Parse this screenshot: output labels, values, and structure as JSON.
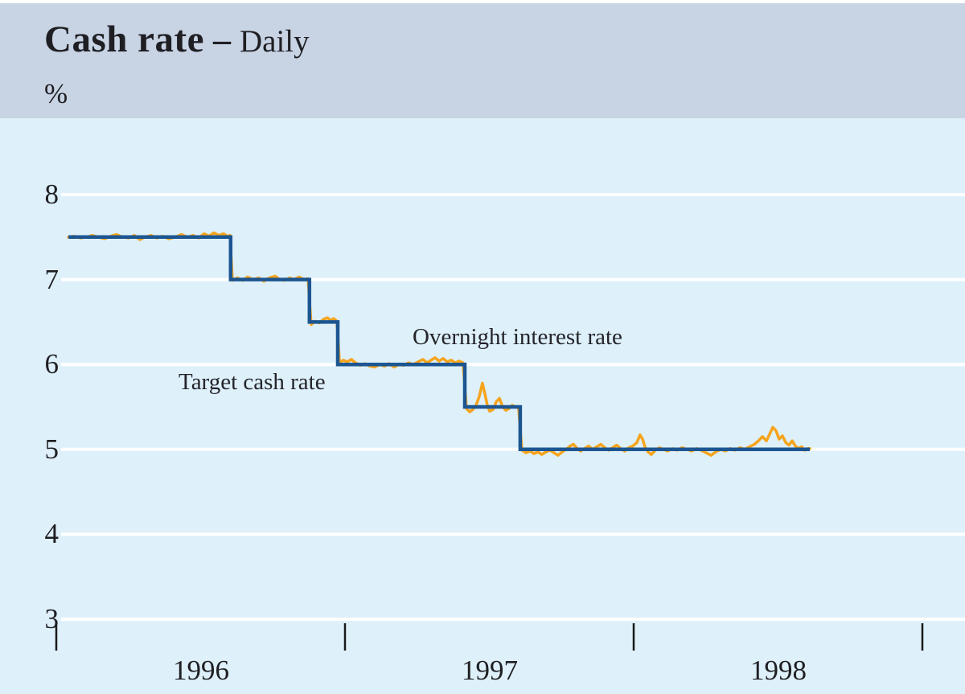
{
  "header": {
    "title": "Cash rate",
    "separator": " – ",
    "subtitle": "Daily",
    "unit": "%"
  },
  "colors": {
    "header_band": "#c8d3e4",
    "plot_background": "#def0fa",
    "gridline": "#ffffff",
    "target_line": "#1c5692",
    "overnight_line": "#f6a41c",
    "text": "#1f1f23",
    "tick": "#1a1a1a"
  },
  "chart_data": {
    "type": "line",
    "title": "Cash rate – Daily",
    "ylabel": "%",
    "ylim": [
      3,
      8.4
    ],
    "yticks": [
      8,
      7,
      6,
      5,
      4,
      3
    ],
    "ytick_labels": [
      "8",
      "7",
      "6",
      "5",
      "4",
      "3"
    ],
    "xtick_boundary_years": [
      1996,
      1997,
      1998,
      1999
    ],
    "xtick_labels": [
      "1996",
      "1997",
      "1998"
    ],
    "grid": "horizontal white gridlines on",
    "legend_position": "inline text annotations",
    "annotations": [
      {
        "text": "Target cash rate",
        "anchor_value": 6.0,
        "anchor_year": 1996.6
      },
      {
        "text": "Overnight interest rate",
        "anchor_value": 6.3,
        "anchor_year": 1997.3
      }
    ],
    "series": [
      {
        "name": "Target cash rate",
        "style": "step",
        "steps": [
          {
            "from": 1996.042,
            "to": 1996.604,
            "value": 7.5
          },
          {
            "from": 1996.604,
            "to": 1996.877,
            "value": 7.0
          },
          {
            "from": 1996.877,
            "to": 1996.975,
            "value": 6.5
          },
          {
            "from": 1996.975,
            "to": 1997.415,
            "value": 6.0
          },
          {
            "from": 1997.415,
            "to": 1997.607,
            "value": 5.5
          },
          {
            "from": 1997.607,
            "to": 1998.61,
            "value": 5.0
          }
        ]
      },
      {
        "name": "Overnight interest rate",
        "style": "line",
        "points": [
          [
            1996.042,
            7.5
          ],
          [
            1996.061,
            7.51
          ],
          [
            1996.084,
            7.49
          ],
          [
            1996.106,
            7.5
          ],
          [
            1996.125,
            7.52
          ],
          [
            1996.145,
            7.5
          ],
          [
            1996.167,
            7.48
          ],
          [
            1996.189,
            7.51
          ],
          [
            1996.209,
            7.53
          ],
          [
            1996.228,
            7.5
          ],
          [
            1996.251,
            7.49
          ],
          [
            1996.27,
            7.52
          ],
          [
            1996.29,
            7.47
          ],
          [
            1996.306,
            7.5
          ],
          [
            1996.329,
            7.52
          ],
          [
            1996.348,
            7.49
          ],
          [
            1996.368,
            7.51
          ],
          [
            1996.39,
            7.48
          ],
          [
            1996.412,
            7.5
          ],
          [
            1996.434,
            7.53
          ],
          [
            1996.454,
            7.5
          ],
          [
            1996.474,
            7.52
          ],
          [
            1996.493,
            7.49
          ],
          [
            1996.512,
            7.54
          ],
          [
            1996.529,
            7.51
          ],
          [
            1996.546,
            7.55
          ],
          [
            1996.563,
            7.52
          ],
          [
            1996.579,
            7.54
          ],
          [
            1996.593,
            7.51
          ],
          [
            1996.602,
            7.52
          ],
          [
            1996.61,
            6.99
          ],
          [
            1996.627,
            7.02
          ],
          [
            1996.646,
            6.99
          ],
          [
            1996.663,
            7.03
          ],
          [
            1996.682,
            7.0
          ],
          [
            1996.702,
            7.02
          ],
          [
            1996.719,
            6.98
          ],
          [
            1996.738,
            7.02
          ],
          [
            1996.758,
            7.04
          ],
          [
            1996.774,
            7.0
          ],
          [
            1996.791,
            6.99
          ],
          [
            1996.808,
            7.02
          ],
          [
            1996.824,
            7.0
          ],
          [
            1996.841,
            7.03
          ],
          [
            1996.858,
            7.0
          ],
          [
            1996.872,
            7.01
          ],
          [
            1996.883,
            6.47
          ],
          [
            1996.897,
            6.51
          ],
          [
            1996.911,
            6.49
          ],
          [
            1996.925,
            6.53
          ],
          [
            1996.939,
            6.55
          ],
          [
            1996.95,
            6.52
          ],
          [
            1996.961,
            6.54
          ],
          [
            1996.972,
            6.51
          ],
          [
            1996.981,
            6.02
          ],
          [
            1996.994,
            6.05
          ],
          [
            1997.008,
            6.03
          ],
          [
            1997.022,
            6.06
          ],
          [
            1997.036,
            6.02
          ],
          [
            1997.053,
            5.99
          ],
          [
            1997.07,
            6.01
          ],
          [
            1997.086,
            5.98
          ],
          [
            1997.103,
            5.97
          ],
          [
            1997.12,
            6.0
          ],
          [
            1997.137,
            5.98
          ],
          [
            1997.153,
            6.01
          ],
          [
            1997.17,
            5.97
          ],
          [
            1997.187,
            6.0
          ],
          [
            1997.203,
            5.99
          ],
          [
            1997.22,
            6.02
          ],
          [
            1997.237,
            6.0
          ],
          [
            1997.253,
            6.03
          ],
          [
            1997.27,
            6.06
          ],
          [
            1997.284,
            6.02
          ],
          [
            1997.298,
            6.05
          ],
          [
            1997.312,
            6.08
          ],
          [
            1997.326,
            6.04
          ],
          [
            1997.34,
            6.07
          ],
          [
            1997.354,
            6.03
          ],
          [
            1997.368,
            6.05
          ],
          [
            1997.382,
            6.02
          ],
          [
            1997.395,
            6.04
          ],
          [
            1997.409,
            6.02
          ],
          [
            1997.421,
            5.48
          ],
          [
            1997.432,
            5.44
          ],
          [
            1997.443,
            5.47
          ],
          [
            1997.454,
            5.52
          ],
          [
            1997.465,
            5.62
          ],
          [
            1997.476,
            5.78
          ],
          [
            1997.485,
            5.65
          ],
          [
            1997.493,
            5.52
          ],
          [
            1997.501,
            5.45
          ],
          [
            1997.513,
            5.47
          ],
          [
            1997.524,
            5.56
          ],
          [
            1997.535,
            5.6
          ],
          [
            1997.546,
            5.5
          ],
          [
            1997.557,
            5.46
          ],
          [
            1997.568,
            5.48
          ],
          [
            1997.579,
            5.52
          ],
          [
            1997.59,
            5.5
          ],
          [
            1997.601,
            5.49
          ],
          [
            1997.613,
            4.99
          ],
          [
            1997.627,
            4.96
          ],
          [
            1997.641,
            4.98
          ],
          [
            1997.655,
            4.95
          ],
          [
            1997.668,
            4.97
          ],
          [
            1997.682,
            4.94
          ],
          [
            1997.696,
            4.97
          ],
          [
            1997.71,
            4.99
          ],
          [
            1997.724,
            4.96
          ],
          [
            1997.738,
            4.93
          ],
          [
            1997.752,
            4.97
          ],
          [
            1997.766,
            5.0
          ],
          [
            1997.78,
            5.04
          ],
          [
            1997.791,
            5.06
          ],
          [
            1997.802,
            5.02
          ],
          [
            1997.816,
            4.98
          ],
          [
            1997.83,
            5.01
          ],
          [
            1997.844,
            5.04
          ],
          [
            1997.858,
            5.0
          ],
          [
            1997.872,
            5.03
          ],
          [
            1997.886,
            5.06
          ],
          [
            1997.9,
            5.02
          ],
          [
            1997.913,
            4.99
          ],
          [
            1997.927,
            5.02
          ],
          [
            1997.941,
            5.05
          ],
          [
            1997.955,
            5.01
          ],
          [
            1997.969,
            4.98
          ],
          [
            1997.983,
            5.02
          ],
          [
            1997.997,
            5.04
          ],
          [
            1998.011,
            5.08
          ],
          [
            1998.022,
            5.17
          ],
          [
            1998.031,
            5.12
          ],
          [
            1998.039,
            5.03
          ],
          [
            1998.05,
            4.97
          ],
          [
            1998.061,
            4.94
          ],
          [
            1998.075,
            4.99
          ],
          [
            1998.089,
            5.02
          ],
          [
            1998.103,
            5.0
          ],
          [
            1998.117,
            4.98
          ],
          [
            1998.134,
            5.01
          ],
          [
            1998.15,
            4.99
          ],
          [
            1998.167,
            5.02
          ],
          [
            1998.184,
            5.0
          ],
          [
            1998.201,
            4.98
          ],
          [
            1998.217,
            5.01
          ],
          [
            1998.234,
            4.99
          ],
          [
            1998.251,
            4.96
          ],
          [
            1998.268,
            4.93
          ],
          [
            1998.284,
            4.97
          ],
          [
            1998.301,
            5.0
          ],
          [
            1998.318,
            4.98
          ],
          [
            1998.334,
            5.01
          ],
          [
            1998.351,
            4.99
          ],
          [
            1998.368,
            5.02
          ],
          [
            1998.384,
            5.0
          ],
          [
            1998.401,
            5.03
          ],
          [
            1998.418,
            5.06
          ],
          [
            1998.432,
            5.1
          ],
          [
            1998.446,
            5.15
          ],
          [
            1998.46,
            5.1
          ],
          [
            1998.471,
            5.18
          ],
          [
            1998.482,
            5.26
          ],
          [
            1998.493,
            5.22
          ],
          [
            1998.504,
            5.12
          ],
          [
            1998.515,
            5.16
          ],
          [
            1998.527,
            5.08
          ],
          [
            1998.538,
            5.05
          ],
          [
            1998.549,
            5.1
          ],
          [
            1998.56,
            5.04
          ],
          [
            1998.571,
            5.01
          ],
          [
            1998.582,
            5.03
          ],
          [
            1998.593,
            4.99
          ],
          [
            1998.604,
            5.01
          ],
          [
            1998.61,
            5.01
          ]
        ]
      }
    ]
  }
}
